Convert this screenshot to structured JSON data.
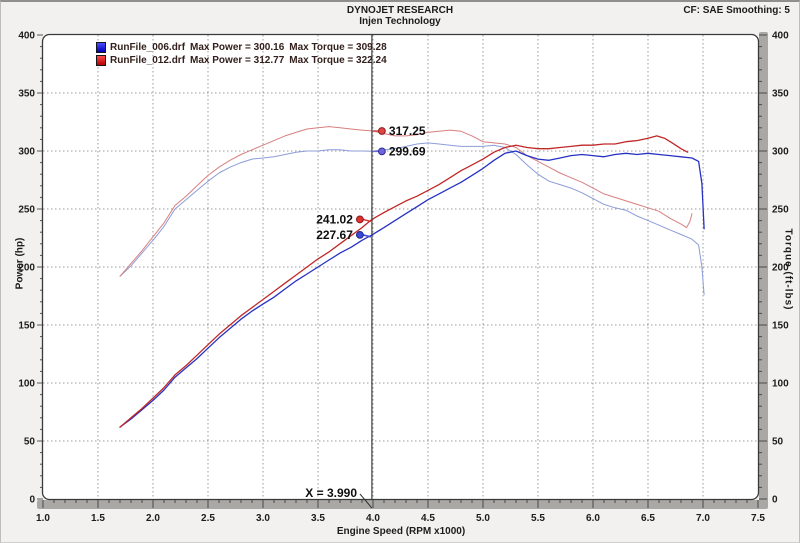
{
  "window": {
    "header_line1": "DYNOJET RESEARCH",
    "header_line2": "Injen Technology",
    "cf_note": "CF: SAE  Smoothing: 5"
  },
  "legend": {
    "runs": [
      {
        "file": "RunFile_006.drf",
        "max_power_label": "Max Power = 300.16",
        "max_torque_label": "Max Torque = 309.28",
        "swatch_top": "#4a4aff",
        "swatch_bottom": "#0000b4"
      },
      {
        "file": "RunFile_012.drf",
        "max_power_label": "Max Power = 312.77",
        "max_torque_label": "Max Torque = 322.24",
        "swatch_top": "#ff4a4a",
        "swatch_bottom": "#b40000"
      }
    ]
  },
  "axes": {
    "left_title": "Power (hp)",
    "right_title": "Torque (ft-lbs)",
    "bottom_title": "Engine Speed (RPM x1000)",
    "x_tick_labels": [
      "1.0",
      "1.5",
      "2.0",
      "2.5",
      "3.0",
      "3.5",
      "4.0",
      "4.5",
      "5.0",
      "5.5",
      "6.0",
      "6.5",
      "7.0",
      "7.5"
    ],
    "y_tick_labels": [
      "0",
      "50",
      "100",
      "150",
      "200",
      "250",
      "300",
      "350",
      "400"
    ]
  },
  "cursor": {
    "label": "X = 3.990",
    "x": 3.99
  },
  "chart_data": {
    "type": "line",
    "title": "DYNOJET RESEARCH - Injen Technology",
    "xlabel": "Engine Speed (RPM x1000)",
    "ylabel_left": "Power (hp)",
    "ylabel_right": "Torque (ft-lbs)",
    "x_range": [
      1.0,
      7.5
    ],
    "y_range": [
      0,
      400
    ],
    "x_ticks": [
      1.0,
      1.5,
      2.0,
      2.5,
      3.0,
      3.5,
      4.0,
      4.5,
      5.0,
      5.5,
      6.0,
      6.5,
      7.0,
      7.5
    ],
    "y_ticks": [
      0,
      50,
      100,
      150,
      200,
      250,
      300,
      350,
      400
    ],
    "grid": "dotted major gridlines both axes",
    "legend_position": "top-left inside plot",
    "cursor_x": 3.99,
    "colors": {
      "power_blue": "#2632c2",
      "power_red": "#c02828",
      "torque_blue": "#8c9cd8",
      "torque_red": "#d87f7f",
      "gridline": "#9a9a9a",
      "cursor_line": "#3c3c3c",
      "plot_bg": "#ffffff",
      "band": "#a9a8a4"
    },
    "series": [
      {
        "name": "RunFile_006 Torque",
        "axis": "right",
        "color": "#8c9cd8",
        "width": 1.0,
        "points": [
          [
            1.7,
            192
          ],
          [
            1.8,
            201
          ],
          [
            1.9,
            212
          ],
          [
            2.0,
            223
          ],
          [
            2.1,
            235
          ],
          [
            2.2,
            250
          ],
          [
            2.3,
            258
          ],
          [
            2.4,
            266
          ],
          [
            2.5,
            274
          ],
          [
            2.6,
            281
          ],
          [
            2.7,
            286
          ],
          [
            2.8,
            290
          ],
          [
            2.9,
            293
          ],
          [
            3.0,
            294
          ],
          [
            3.1,
            295
          ],
          [
            3.2,
            297
          ],
          [
            3.3,
            299
          ],
          [
            3.4,
            300
          ],
          [
            3.5,
            300
          ],
          [
            3.6,
            301
          ],
          [
            3.7,
            301
          ],
          [
            3.8,
            300
          ],
          [
            3.9,
            300
          ],
          [
            3.99,
            299.7
          ],
          [
            4.1,
            301
          ],
          [
            4.2,
            302
          ],
          [
            4.3,
            304
          ],
          [
            4.4,
            306
          ],
          [
            4.5,
            307
          ],
          [
            4.6,
            306
          ],
          [
            4.7,
            305
          ],
          [
            4.8,
            304
          ],
          [
            4.9,
            304
          ],
          [
            5.0,
            304
          ],
          [
            5.1,
            305
          ],
          [
            5.2,
            303
          ],
          [
            5.3,
            297
          ],
          [
            5.4,
            288
          ],
          [
            5.5,
            280
          ],
          [
            5.6,
            274
          ],
          [
            5.7,
            271
          ],
          [
            5.8,
            268
          ],
          [
            5.9,
            264
          ],
          [
            6.0,
            259
          ],
          [
            6.1,
            254
          ],
          [
            6.2,
            251
          ],
          [
            6.3,
            249
          ],
          [
            6.4,
            244
          ],
          [
            6.5,
            240
          ],
          [
            6.6,
            236
          ],
          [
            6.7,
            232
          ],
          [
            6.8,
            228
          ],
          [
            6.9,
            224
          ],
          [
            6.96,
            219
          ],
          [
            6.99,
            200
          ],
          [
            7.01,
            176
          ]
        ]
      },
      {
        "name": "RunFile_012 Torque",
        "axis": "right",
        "color": "#d87f7f",
        "width": 1.0,
        "points": [
          [
            1.7,
            192
          ],
          [
            1.8,
            203
          ],
          [
            1.9,
            214
          ],
          [
            2.0,
            226
          ],
          [
            2.1,
            238
          ],
          [
            2.2,
            253
          ],
          [
            2.3,
            261
          ],
          [
            2.4,
            270
          ],
          [
            2.5,
            279
          ],
          [
            2.6,
            286
          ],
          [
            2.7,
            292
          ],
          [
            2.8,
            297
          ],
          [
            2.9,
            301
          ],
          [
            3.0,
            305
          ],
          [
            3.1,
            309
          ],
          [
            3.2,
            313
          ],
          [
            3.3,
            316
          ],
          [
            3.4,
            319
          ],
          [
            3.5,
            320
          ],
          [
            3.6,
            321
          ],
          [
            3.7,
            320
          ],
          [
            3.8,
            319
          ],
          [
            3.9,
            318
          ],
          [
            3.99,
            317.3
          ],
          [
            4.1,
            315
          ],
          [
            4.2,
            313
          ],
          [
            4.3,
            313
          ],
          [
            4.4,
            314
          ],
          [
            4.5,
            316
          ],
          [
            4.6,
            317
          ],
          [
            4.7,
            318
          ],
          [
            4.8,
            317
          ],
          [
            4.9,
            313
          ],
          [
            5.0,
            308
          ],
          [
            5.1,
            307
          ],
          [
            5.2,
            306
          ],
          [
            5.3,
            303
          ],
          [
            5.4,
            296
          ],
          [
            5.5,
            291
          ],
          [
            5.6,
            286
          ],
          [
            5.7,
            281
          ],
          [
            5.8,
            277
          ],
          [
            5.9,
            273
          ],
          [
            6.0,
            268
          ],
          [
            6.1,
            263
          ],
          [
            6.2,
            260
          ],
          [
            6.3,
            257
          ],
          [
            6.4,
            254
          ],
          [
            6.5,
            251
          ],
          [
            6.6,
            248
          ],
          [
            6.7,
            242
          ],
          [
            6.8,
            237
          ],
          [
            6.85,
            234
          ],
          [
            6.88,
            239
          ],
          [
            6.9,
            246
          ]
        ]
      },
      {
        "name": "RunFile_006 Power",
        "axis": "left",
        "color": "#2632c2",
        "width": 1.3,
        "points": [
          [
            1.7,
            62
          ],
          [
            1.8,
            69
          ],
          [
            1.9,
            77
          ],
          [
            2.0,
            85
          ],
          [
            2.1,
            94
          ],
          [
            2.2,
            105
          ],
          [
            2.3,
            113
          ],
          [
            2.4,
            121
          ],
          [
            2.5,
            130
          ],
          [
            2.6,
            139
          ],
          [
            2.7,
            147
          ],
          [
            2.8,
            155
          ],
          [
            2.9,
            162
          ],
          [
            3.0,
            168
          ],
          [
            3.1,
            174
          ],
          [
            3.2,
            181
          ],
          [
            3.3,
            188
          ],
          [
            3.4,
            194
          ],
          [
            3.5,
            200
          ],
          [
            3.6,
            206
          ],
          [
            3.7,
            212
          ],
          [
            3.8,
            217
          ],
          [
            3.9,
            223
          ],
          [
            3.99,
            227.7
          ],
          [
            4.1,
            234
          ],
          [
            4.2,
            240
          ],
          [
            4.3,
            246
          ],
          [
            4.4,
            252
          ],
          [
            4.5,
            258
          ],
          [
            4.6,
            263
          ],
          [
            4.7,
            268
          ],
          [
            4.8,
            273
          ],
          [
            4.9,
            279
          ],
          [
            5.0,
            285
          ],
          [
            5.1,
            292
          ],
          [
            5.2,
            298
          ],
          [
            5.3,
            300
          ],
          [
            5.4,
            296
          ],
          [
            5.5,
            293
          ],
          [
            5.6,
            292
          ],
          [
            5.7,
            294
          ],
          [
            5.8,
            296
          ],
          [
            5.9,
            297
          ],
          [
            6.0,
            296
          ],
          [
            6.1,
            295
          ],
          [
            6.2,
            297
          ],
          [
            6.3,
            298
          ],
          [
            6.4,
            297
          ],
          [
            6.5,
            298
          ],
          [
            6.6,
            297
          ],
          [
            6.7,
            296
          ],
          [
            6.8,
            295
          ],
          [
            6.9,
            294
          ],
          [
            6.96,
            291
          ],
          [
            6.99,
            272
          ],
          [
            7.01,
            233
          ]
        ]
      },
      {
        "name": "RunFile_012 Power",
        "axis": "left",
        "color": "#c02828",
        "width": 1.3,
        "points": [
          [
            1.7,
            62
          ],
          [
            1.8,
            70
          ],
          [
            1.9,
            78
          ],
          [
            2.0,
            87
          ],
          [
            2.1,
            96
          ],
          [
            2.2,
            107
          ],
          [
            2.3,
            115
          ],
          [
            2.4,
            124
          ],
          [
            2.5,
            133
          ],
          [
            2.6,
            142
          ],
          [
            2.7,
            150
          ],
          [
            2.8,
            158
          ],
          [
            2.9,
            165
          ],
          [
            3.0,
            172
          ],
          [
            3.1,
            179
          ],
          [
            3.2,
            186
          ],
          [
            3.3,
            193
          ],
          [
            3.4,
            200
          ],
          [
            3.5,
            207
          ],
          [
            3.6,
            213
          ],
          [
            3.7,
            220
          ],
          [
            3.8,
            227
          ],
          [
            3.9,
            234
          ],
          [
            3.99,
            241
          ],
          [
            4.1,
            247
          ],
          [
            4.2,
            252
          ],
          [
            4.3,
            257
          ],
          [
            4.4,
            261
          ],
          [
            4.5,
            266
          ],
          [
            4.6,
            271
          ],
          [
            4.7,
            277
          ],
          [
            4.8,
            283
          ],
          [
            4.9,
            288
          ],
          [
            5.0,
            293
          ],
          [
            5.1,
            299
          ],
          [
            5.2,
            303
          ],
          [
            5.3,
            305
          ],
          [
            5.4,
            303
          ],
          [
            5.5,
            302
          ],
          [
            5.6,
            302
          ],
          [
            5.7,
            303
          ],
          [
            5.8,
            304
          ],
          [
            5.9,
            305
          ],
          [
            6.0,
            305
          ],
          [
            6.1,
            306
          ],
          [
            6.2,
            306
          ],
          [
            6.3,
            308
          ],
          [
            6.4,
            309
          ],
          [
            6.5,
            311
          ],
          [
            6.58,
            313
          ],
          [
            6.65,
            311
          ],
          [
            6.72,
            307
          ],
          [
            6.8,
            302
          ],
          [
            6.86,
            299
          ]
        ]
      }
    ],
    "annotations": [
      {
        "label": "317.25",
        "value": 317.25,
        "x": 3.99,
        "side": "right",
        "dot_fill": "#e04545",
        "dot_stroke": "#8a1d1d"
      },
      {
        "label": "299.69",
        "value": 299.69,
        "x": 3.99,
        "side": "right",
        "dot_fill": "#6e64e0",
        "dot_stroke": "#31318f"
      },
      {
        "label": "241.02",
        "value": 241.02,
        "x": 3.99,
        "side": "left",
        "dot_fill": "#e03030",
        "dot_stroke": "#8a1d1d"
      },
      {
        "label": "227.67",
        "value": 227.67,
        "x": 3.99,
        "side": "left",
        "dot_fill": "#3a46d8",
        "dot_stroke": "#1d2a8a"
      }
    ]
  }
}
